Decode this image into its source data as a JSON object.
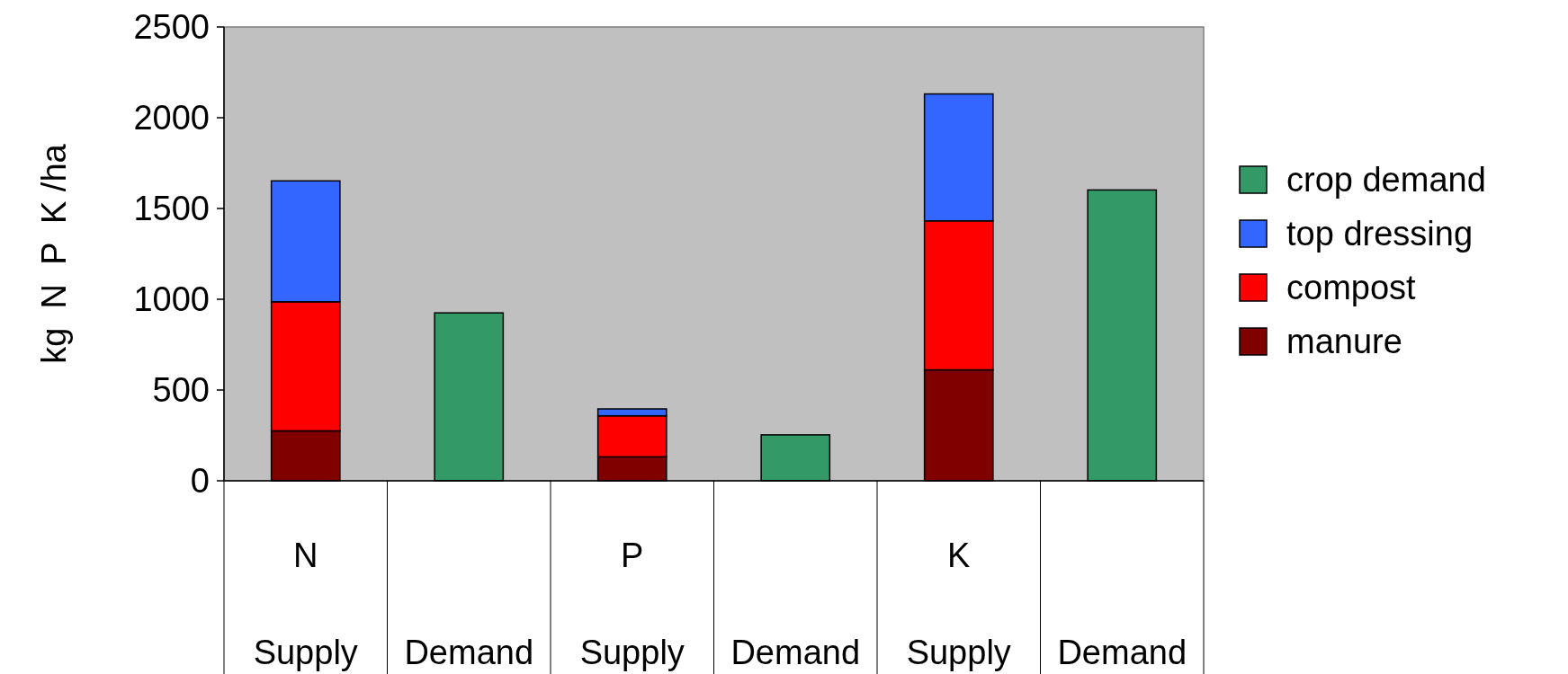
{
  "chart_data": {
    "type": "bar",
    "stacked": true,
    "ylabel": "kg  N  P  K /ha",
    "categories": [
      "N\nSupply",
      "\nDemand",
      "P\nSupply",
      "\nDemand",
      "K\nSupply",
      "\nDemand"
    ],
    "series": [
      {
        "name": "manure",
        "color": "#800000",
        "values": [
          275,
          null,
          132,
          null,
          611,
          null
        ]
      },
      {
        "name": "compost",
        "color": "#ff0000",
        "values": [
          711,
          null,
          226,
          null,
          821,
          null
        ]
      },
      {
        "name": "top dressing",
        "color": "#3366ff",
        "values": [
          666,
          null,
          38,
          null,
          699,
          null
        ]
      },
      {
        "name": "crop demand",
        "color": "#339966",
        "values": [
          null,
          925,
          null,
          253,
          null,
          1602
        ]
      }
    ],
    "ylim": [
      0,
      2500
    ],
    "yticks": [
      0,
      500,
      1000,
      1500,
      2000,
      2500
    ],
    "grid": false,
    "legend": "right"
  }
}
